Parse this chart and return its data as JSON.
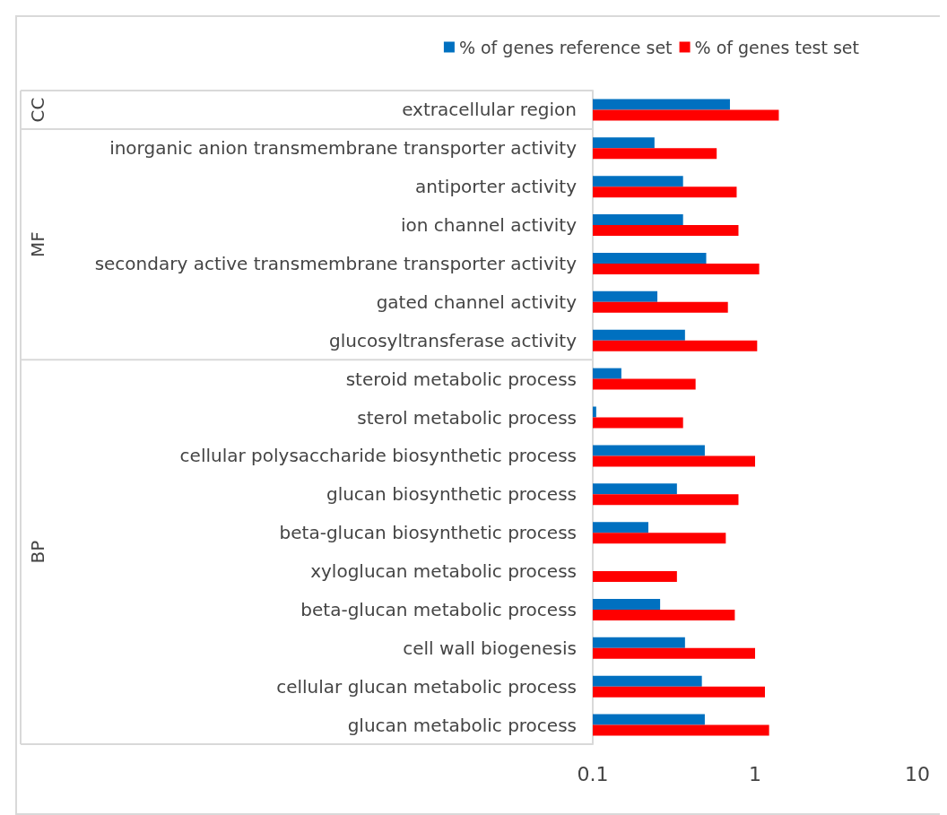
{
  "chart_data": {
    "type": "bar",
    "orientation": "horizontal",
    "log": "x",
    "categories": [
      "extracellular region",
      "inorganic anion transmembrane transporter activity",
      "antiporter activity",
      "ion channel activity",
      "secondary active transmembrane transporter activity",
      "gated channel activity",
      "glucosyltransferase activity",
      "steroid metabolic process",
      "sterol metabolic process",
      "cellular polysaccharide biosynthetic process",
      "glucan biosynthetic process",
      "beta-glucan biosynthetic process",
      "xyloglucan metabolic process",
      "beta-glucan metabolic process",
      "cell wall biogenesis",
      "cellular glucan metabolic process",
      "glucan metabolic process"
    ],
    "series": [
      {
        "name": "% of genes reference set",
        "color": "#0070c0",
        "values": [
          0.7,
          0.24,
          0.36,
          0.36,
          0.5,
          0.25,
          0.37,
          0.15,
          0.105,
          0.49,
          0.33,
          0.22,
          null,
          0.26,
          0.37,
          0.47,
          0.49
        ]
      },
      {
        "name": "% of genes test set",
        "color": "#ff0000",
        "values": [
          1.4,
          0.58,
          0.77,
          0.79,
          1.06,
          0.68,
          1.03,
          0.43,
          0.36,
          1.0,
          0.79,
          0.66,
          0.33,
          0.75,
          1.0,
          1.15,
          1.22
        ]
      }
    ],
    "xlim": [
      0.1,
      10
    ],
    "xticks": [
      0.1,
      1,
      10
    ],
    "annotations": [
      "CC",
      "MF",
      "BP"
    ],
    "legend": "top",
    "grid": false
  }
}
